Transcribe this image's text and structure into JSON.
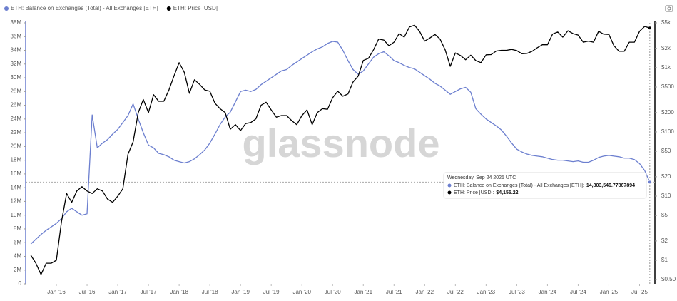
{
  "chart_data": {
    "type": "line",
    "legend": "top-left",
    "watermark": "glassnode",
    "x": [
      "2015-08",
      "2015-09",
      "2015-10",
      "2015-11",
      "2015-12",
      "2016-01",
      "2016-02",
      "2016-03",
      "2016-04",
      "2016-05",
      "2016-06",
      "2016-07",
      "2016-08",
      "2016-09",
      "2016-10",
      "2016-11",
      "2016-12",
      "2017-01",
      "2017-02",
      "2017-03",
      "2017-04",
      "2017-05",
      "2017-06",
      "2017-07",
      "2017-08",
      "2017-09",
      "2017-10",
      "2017-11",
      "2017-12",
      "2018-01",
      "2018-02",
      "2018-03",
      "2018-04",
      "2018-05",
      "2018-06",
      "2018-07",
      "2018-08",
      "2018-09",
      "2018-10",
      "2018-11",
      "2018-12",
      "2019-01",
      "2019-02",
      "2019-03",
      "2019-04",
      "2019-05",
      "2019-06",
      "2019-07",
      "2019-08",
      "2019-09",
      "2019-10",
      "2019-11",
      "2019-12",
      "2020-01",
      "2020-02",
      "2020-03",
      "2020-04",
      "2020-05",
      "2020-06",
      "2020-07",
      "2020-08",
      "2020-09",
      "2020-10",
      "2020-11",
      "2020-12",
      "2021-01",
      "2021-02",
      "2021-03",
      "2021-04",
      "2021-05",
      "2021-06",
      "2021-07",
      "2021-08",
      "2021-09",
      "2021-10",
      "2021-11",
      "2021-12",
      "2022-01",
      "2022-02",
      "2022-03",
      "2022-04",
      "2022-05",
      "2022-06",
      "2022-07",
      "2022-08",
      "2022-09",
      "2022-10",
      "2022-11",
      "2022-12",
      "2023-01",
      "2023-02",
      "2023-03",
      "2023-04",
      "2023-05",
      "2023-06",
      "2023-07",
      "2023-08",
      "2023-09",
      "2023-10",
      "2023-11",
      "2023-12",
      "2024-01",
      "2024-02",
      "2024-03",
      "2024-04",
      "2024-05",
      "2024-06",
      "2024-07",
      "2024-08",
      "2024-09",
      "2024-10",
      "2024-11",
      "2024-12",
      "2025-01",
      "2025-02",
      "2025-03",
      "2025-04",
      "2025-05",
      "2025-06",
      "2025-07",
      "2025-08",
      "2025-09"
    ],
    "series": [
      {
        "name": "ETH: Balance on Exchanges (Total) - All Exchanges [ETH]",
        "color": "#6c7fcf",
        "values": [
          5800000,
          6500000,
          7200000,
          7800000,
          8300000,
          8800000,
          9500000,
          10500000,
          11000000,
          10500000,
          10000000,
          10200000,
          24600000,
          19800000,
          20500000,
          21000000,
          21800000,
          22500000,
          23500000,
          24500000,
          26200000,
          24000000,
          22000000,
          20200000,
          19800000,
          19000000,
          18800000,
          18500000,
          18000000,
          17800000,
          17600000,
          17800000,
          18200000,
          18800000,
          19500000,
          20500000,
          21800000,
          23200000,
          24300000,
          25000000,
          26500000,
          28000000,
          28200000,
          28000000,
          28300000,
          29000000,
          29500000,
          30000000,
          30500000,
          31000000,
          31200000,
          31800000,
          32300000,
          32800000,
          33300000,
          33800000,
          34200000,
          34500000,
          35000000,
          35300000,
          35200000,
          34000000,
          32500000,
          31200000,
          30500000,
          31000000,
          32000000,
          33000000,
          33500000,
          33800000,
          33200000,
          32500000,
          32200000,
          31800000,
          31500000,
          31300000,
          30800000,
          30300000,
          29800000,
          29200000,
          28800000,
          28200000,
          27600000,
          28000000,
          28400000,
          28600000,
          27900000,
          25500000,
          24700000,
          24000000,
          23500000,
          23000000,
          22400000,
          21500000,
          20500000,
          19600000,
          19200000,
          18900000,
          18700000,
          18600000,
          18500000,
          18300000,
          18100000,
          18000000,
          18000000,
          17900000,
          17800000,
          17900000,
          17700000,
          17700000,
          18000000,
          18400000,
          18600000,
          18700000,
          18600000,
          18500000,
          18300000,
          18300000,
          18100000,
          17500000,
          16500000,
          14803546.77867894
        ]
      },
      {
        "name": "ETH: Price [USD]",
        "color": "#000000",
        "axis": "y2",
        "values": [
          1.2,
          0.9,
          0.6,
          0.9,
          0.9,
          1.0,
          4,
          11,
          8,
          12,
          14,
          12,
          11,
          13,
          12,
          9,
          8,
          10,
          13,
          45,
          70,
          200,
          320,
          200,
          380,
          300,
          300,
          450,
          750,
          1200,
          850,
          400,
          650,
          550,
          450,
          430,
          280,
          230,
          200,
          110,
          130,
          105,
          135,
          140,
          160,
          260,
          290,
          220,
          170,
          180,
          180,
          150,
          130,
          180,
          220,
          130,
          200,
          230,
          225,
          340,
          430,
          360,
          390,
          600,
          740,
          1300,
          1400,
          1900,
          2800,
          2700,
          2200,
          2500,
          3400,
          3000,
          4300,
          4600,
          3700,
          2600,
          2900,
          3300,
          2800,
          1900,
          1050,
          1700,
          1550,
          1330,
          1570,
          1290,
          1200,
          1590,
          1600,
          1820,
          1870,
          1870,
          1930,
          1850,
          1650,
          1670,
          1800,
          2050,
          2280,
          2280,
          3350,
          3600,
          3000,
          3760,
          3400,
          3230,
          2500,
          2600,
          2500,
          3700,
          3330,
          3300,
          2200,
          1800,
          1800,
          2500,
          2500,
          3700,
          4400,
          4155.22
        ]
      }
    ],
    "xlim": [
      "2015-07",
      "2025-10"
    ],
    "xticks": [
      {
        "value": "2016-01",
        "label": "Jan '16"
      },
      {
        "value": "2016-07",
        "label": "Jul '16"
      },
      {
        "value": "2017-01",
        "label": "Jan '17"
      },
      {
        "value": "2017-07",
        "label": "Jul '17"
      },
      {
        "value": "2018-01",
        "label": "Jan '18"
      },
      {
        "value": "2018-07",
        "label": "Jul '18"
      },
      {
        "value": "2019-01",
        "label": "Jan '19"
      },
      {
        "value": "2019-07",
        "label": "Jul '19"
      },
      {
        "value": "2020-01",
        "label": "Jan '20"
      },
      {
        "value": "2020-07",
        "label": "Jul '20"
      },
      {
        "value": "2021-01",
        "label": "Jan '21"
      },
      {
        "value": "2021-07",
        "label": "Jul '21"
      },
      {
        "value": "2022-01",
        "label": "Jan '22"
      },
      {
        "value": "2022-07",
        "label": "Jul '22"
      },
      {
        "value": "2023-01",
        "label": "Jan '23"
      },
      {
        "value": "2023-07",
        "label": "Jul '23"
      },
      {
        "value": "2024-01",
        "label": "Jan '24"
      },
      {
        "value": "2024-07",
        "label": "Jul '24"
      },
      {
        "value": "2025-01",
        "label": "Jan '25"
      },
      {
        "value": "2025-07",
        "label": "Jul '25"
      }
    ],
    "ylim": [
      0,
      38000000
    ],
    "yticks": [
      0,
      {
        "value": 2000000,
        "label": "2M"
      },
      {
        "value": 4000000,
        "label": "4M"
      },
      {
        "value": 6000000,
        "label": "6M"
      },
      {
        "value": 8000000,
        "label": "8M"
      },
      {
        "value": 10000000,
        "label": "10M"
      },
      {
        "value": 12000000,
        "label": "12M"
      },
      {
        "value": 14000000,
        "label": "14M"
      },
      {
        "value": 16000000,
        "label": "16M"
      },
      {
        "value": 18000000,
        "label": "18M"
      },
      {
        "value": 20000000,
        "label": "20M"
      },
      {
        "value": 22000000,
        "label": "22M"
      },
      {
        "value": 24000000,
        "label": "24M"
      },
      {
        "value": 26000000,
        "label": "26M"
      },
      {
        "value": 28000000,
        "label": "28M"
      },
      {
        "value": 30000000,
        "label": "30M"
      },
      {
        "value": 32000000,
        "label": "32M"
      },
      {
        "value": 34000000,
        "label": "34M"
      },
      {
        "value": 36000000,
        "label": "36M"
      },
      {
        "value": 38000000,
        "label": "38M"
      }
    ],
    "y2log": true,
    "y2lim": [
      0.43,
      5000
    ],
    "y2ticks": [
      {
        "value": 5000,
        "label": "$5k"
      },
      {
        "value": 2000,
        "label": "$2k"
      },
      {
        "value": 1000,
        "label": "$1k"
      },
      {
        "value": 500,
        "label": "$500"
      },
      {
        "value": 200,
        "label": "$200"
      },
      {
        "value": 100,
        "label": "$100"
      },
      {
        "value": 50,
        "label": "$50"
      },
      {
        "value": 20,
        "label": "$20"
      },
      {
        "value": 10,
        "label": "$10"
      },
      {
        "value": 5,
        "label": "$5"
      },
      {
        "value": 2,
        "label": "$2"
      },
      {
        "value": 1,
        "label": "$1"
      },
      {
        "value": 0.5,
        "label": "$0.50"
      }
    ],
    "grid": false,
    "tooltip": {
      "date": "Wednesday, Sep 24 2025 UTC",
      "rows": [
        {
          "text": "ETH: Balance on Exchanges (Total) - All Exchanges [ETH]:",
          "value_label": "14,803,546.77867894"
        },
        {
          "text": "ETH: Price [USD]:",
          "value_label": "$4,155.22"
        }
      ]
    }
  }
}
